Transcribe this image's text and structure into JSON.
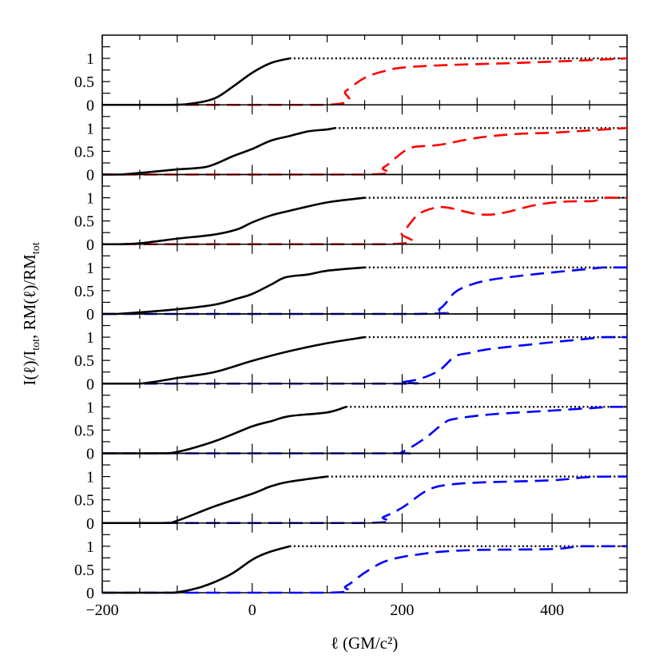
{
  "chart_data": {
    "type": "line",
    "layout": "8 vertically stacked panels sharing x axis",
    "xlabel": "ℓ (GM/c²)",
    "ylabel_parts": [
      "I(ℓ)/I",
      "tot",
      ",  RM(ℓ)/RM",
      "tot"
    ],
    "xlim": [
      -200,
      500
    ],
    "ylim": [
      0,
      1.5
    ],
    "x_ticks": [
      -200,
      0,
      200,
      400
    ],
    "x_tick_labels": [
      "−200",
      "0",
      "200",
      "400"
    ],
    "y_ticks": [
      0,
      0.5,
      1
    ],
    "y_tick_labels": [
      "0",
      "0.5",
      "1"
    ],
    "grid": false,
    "colors": {
      "intensity": "#000000",
      "rm_red": "#ff0000",
      "rm_blue": "#0000ff"
    },
    "panels": [
      {
        "intensity": [
          [
            -200,
            0
          ],
          [
            -110,
            0
          ],
          [
            -80,
            0.03
          ],
          [
            -50,
            0.14
          ],
          [
            -25,
            0.4
          ],
          [
            0,
            0.69
          ],
          [
            25,
            0.9
          ],
          [
            50,
            1.0
          ]
        ],
        "rm_color": "#ff0000",
        "rm": [
          [
            -200,
            0
          ],
          [
            100,
            0
          ],
          [
            125,
            0.3
          ],
          [
            150,
            0.58
          ],
          [
            175,
            0.72
          ],
          [
            200,
            0.8
          ],
          [
            250,
            0.85
          ],
          [
            350,
            0.9
          ],
          [
            400,
            0.93
          ],
          [
            460,
            0.97
          ],
          [
            500,
            1.0
          ]
        ]
      },
      {
        "intensity": [
          [
            -200,
            0
          ],
          [
            -175,
            0
          ],
          [
            -100,
            0.11
          ],
          [
            -60,
            0.17
          ],
          [
            -25,
            0.4
          ],
          [
            0,
            0.55
          ],
          [
            25,
            0.73
          ],
          [
            50,
            0.83
          ],
          [
            75,
            0.93
          ],
          [
            100,
            0.97
          ],
          [
            110,
            1.0
          ]
        ],
        "rm_color": "#ff0000",
        "rm": [
          [
            -200,
            0
          ],
          [
            150,
            0
          ],
          [
            175,
            0.15
          ],
          [
            200,
            0.47
          ],
          [
            215,
            0.59
          ],
          [
            250,
            0.64
          ],
          [
            300,
            0.79
          ],
          [
            350,
            0.87
          ],
          [
            400,
            0.9
          ],
          [
            450,
            0.95
          ],
          [
            500,
            1.0
          ]
        ]
      },
      {
        "intensity": [
          [
            -200,
            0
          ],
          [
            -180,
            0
          ],
          [
            -150,
            0.02
          ],
          [
            -100,
            0.12
          ],
          [
            -50,
            0.21
          ],
          [
            -20,
            0.32
          ],
          [
            0,
            0.47
          ],
          [
            25,
            0.62
          ],
          [
            50,
            0.72
          ],
          [
            100,
            0.9
          ],
          [
            150,
            1.0
          ]
        ],
        "rm_color": "#ff0000",
        "rm": [
          [
            -200,
            0
          ],
          [
            180,
            0
          ],
          [
            200,
            0.24
          ],
          [
            220,
            0.62
          ],
          [
            240,
            0.77
          ],
          [
            260,
            0.79
          ],
          [
            300,
            0.65
          ],
          [
            330,
            0.66
          ],
          [
            380,
            0.85
          ],
          [
            420,
            0.92
          ],
          [
            455,
            0.93
          ],
          [
            470,
            1.0
          ],
          [
            500,
            1.0
          ]
        ]
      },
      {
        "intensity": [
          [
            -200,
            0
          ],
          [
            -180,
            0
          ],
          [
            -100,
            0.1
          ],
          [
            -50,
            0.2
          ],
          [
            -20,
            0.33
          ],
          [
            0,
            0.43
          ],
          [
            25,
            0.63
          ],
          [
            45,
            0.79
          ],
          [
            75,
            0.85
          ],
          [
            100,
            0.93
          ],
          [
            150,
            1.0
          ]
        ],
        "rm_color": "#0000ff",
        "rm": [
          [
            -200,
            0
          ],
          [
            220,
            0
          ],
          [
            250,
            0.11
          ],
          [
            270,
            0.46
          ],
          [
            290,
            0.62
          ],
          [
            320,
            0.74
          ],
          [
            380,
            0.86
          ],
          [
            450,
            0.97
          ],
          [
            470,
            1.0
          ],
          [
            500,
            1.0
          ]
        ]
      },
      {
        "intensity": [
          [
            -200,
            0
          ],
          [
            -150,
            0
          ],
          [
            -100,
            0.12
          ],
          [
            -50,
            0.25
          ],
          [
            0,
            0.49
          ],
          [
            50,
            0.7
          ],
          [
            100,
            0.87
          ],
          [
            150,
            1.0
          ]
        ],
        "rm_color": "#0000ff",
        "rm": [
          [
            -200,
            0
          ],
          [
            190,
            0
          ],
          [
            200,
            0.03
          ],
          [
            225,
            0.11
          ],
          [
            250,
            0.29
          ],
          [
            270,
            0.58
          ],
          [
            290,
            0.66
          ],
          [
            320,
            0.75
          ],
          [
            400,
            0.89
          ],
          [
            450,
            0.97
          ],
          [
            470,
            1.0
          ],
          [
            500,
            1.0
          ]
        ]
      },
      {
        "intensity": [
          [
            -200,
            0
          ],
          [
            -130,
            0
          ],
          [
            -100,
            0.03
          ],
          [
            -50,
            0.26
          ],
          [
            0,
            0.58
          ],
          [
            25,
            0.69
          ],
          [
            50,
            0.8
          ],
          [
            100,
            0.88
          ],
          [
            125,
            1.0
          ]
        ],
        "rm_color": "#0000ff",
        "rm": [
          [
            -200,
            0
          ],
          [
            180,
            0
          ],
          [
            200,
            0.03
          ],
          [
            230,
            0.32
          ],
          [
            255,
            0.64
          ],
          [
            270,
            0.74
          ],
          [
            320,
            0.84
          ],
          [
            400,
            0.92
          ],
          [
            480,
            1.0
          ],
          [
            500,
            1.0
          ]
        ]
      },
      {
        "intensity": [
          [
            -200,
            0
          ],
          [
            -120,
            0
          ],
          [
            -100,
            0.05
          ],
          [
            -50,
            0.36
          ],
          [
            0,
            0.63
          ],
          [
            25,
            0.79
          ],
          [
            50,
            0.89
          ],
          [
            100,
            1.0
          ]
        ],
        "rm_color": "#0000ff",
        "rm": [
          [
            -200,
            0
          ],
          [
            150,
            0
          ],
          [
            175,
            0.13
          ],
          [
            200,
            0.33
          ],
          [
            225,
            0.62
          ],
          [
            240,
            0.75
          ],
          [
            260,
            0.82
          ],
          [
            300,
            0.87
          ],
          [
            400,
            0.92
          ],
          [
            450,
            0.99
          ],
          [
            500,
            1.0
          ]
        ]
      },
      {
        "intensity": [
          [
            -200,
            0
          ],
          [
            -120,
            0
          ],
          [
            -100,
            0.01
          ],
          [
            -75,
            0.09
          ],
          [
            -50,
            0.23
          ],
          [
            -25,
            0.43
          ],
          [
            0,
            0.71
          ],
          [
            20,
            0.86
          ],
          [
            50,
            1.0
          ]
        ],
        "rm_color": "#0000ff",
        "rm": [
          [
            -200,
            0
          ],
          [
            100,
            0.0
          ],
          [
            125,
            0.14
          ],
          [
            150,
            0.43
          ],
          [
            175,
            0.66
          ],
          [
            200,
            0.77
          ],
          [
            225,
            0.83
          ],
          [
            250,
            0.88
          ],
          [
            300,
            0.92
          ],
          [
            400,
            0.94
          ],
          [
            440,
            1.0
          ],
          [
            500,
            1.0
          ]
        ]
      }
    ]
  }
}
